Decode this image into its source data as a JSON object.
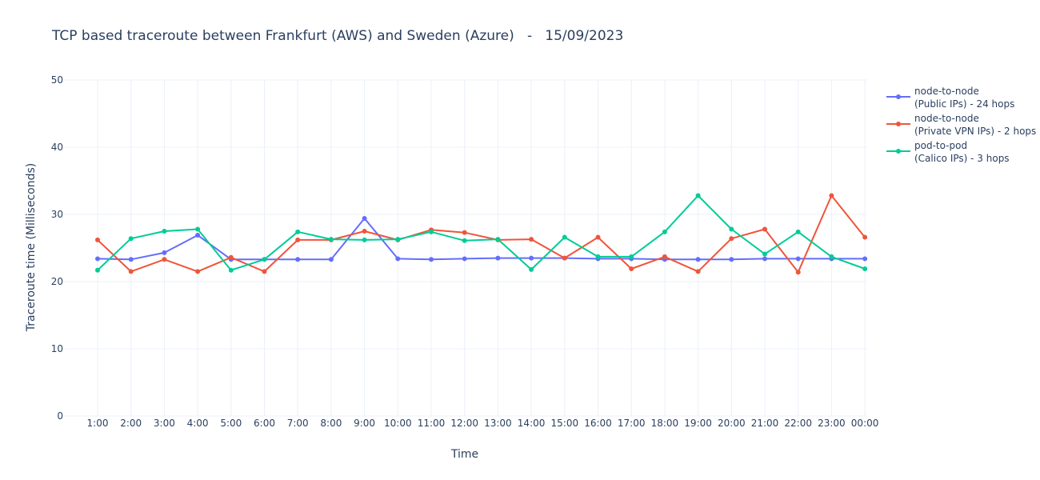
{
  "chart_data": {
    "type": "line",
    "title": "TCP based traceroute between Frankfurt (AWS) and Sweden (Azure)   -   15/09/2023",
    "xlabel": "Time",
    "ylabel": "Traceroute time (Milliseconds)",
    "ylim": [
      0,
      50
    ],
    "yticks": [
      0,
      10,
      20,
      30,
      40,
      50
    ],
    "grid": true,
    "legend_position": "top-right",
    "categories": [
      "1:00",
      "2:00",
      "3:00",
      "4:00",
      "5:00",
      "6:00",
      "7:00",
      "8:00",
      "9:00",
      "10:00",
      "11:00",
      "12:00",
      "13:00",
      "14:00",
      "15:00",
      "16:00",
      "17:00",
      "18:00",
      "19:00",
      "20:00",
      "21:00",
      "22:00",
      "23:00",
      "00:00"
    ],
    "series": [
      {
        "name_line1": "node-to-node",
        "name_line2": "(Public IPs) - 24 hops",
        "color": "#636efa",
        "values": [
          23.4,
          23.3,
          24.3,
          26.9,
          23.3,
          23.3,
          23.3,
          23.3,
          29.4,
          23.4,
          23.3,
          23.4,
          23.5,
          23.5,
          23.5,
          23.4,
          23.4,
          23.3,
          23.3,
          23.3,
          23.4,
          23.4,
          23.4,
          23.4
        ]
      },
      {
        "name_line1": "node-to-node",
        "name_line2": "(Private VPN IPs) - 2 hops",
        "color": "#ef553b",
        "values": [
          26.2,
          21.5,
          23.3,
          21.5,
          23.6,
          21.5,
          26.2,
          26.2,
          27.5,
          26.2,
          27.7,
          27.3,
          26.2,
          26.3,
          23.5,
          26.6,
          21.9,
          23.7,
          21.5,
          26.4,
          27.8,
          21.4,
          32.8,
          26.6
        ]
      },
      {
        "name_line1": "pod-to-pod",
        "name_line2": "(Calico IPs) - 3 hops",
        "color": "#00cc96",
        "values": [
          21.7,
          26.4,
          27.5,
          27.8,
          21.7,
          23.3,
          27.4,
          26.3,
          26.2,
          26.3,
          27.4,
          26.1,
          26.3,
          21.8,
          26.6,
          23.7,
          23.7,
          27.4,
          32.8,
          27.8,
          24.1,
          27.4,
          23.7,
          21.9
        ]
      }
    ]
  }
}
